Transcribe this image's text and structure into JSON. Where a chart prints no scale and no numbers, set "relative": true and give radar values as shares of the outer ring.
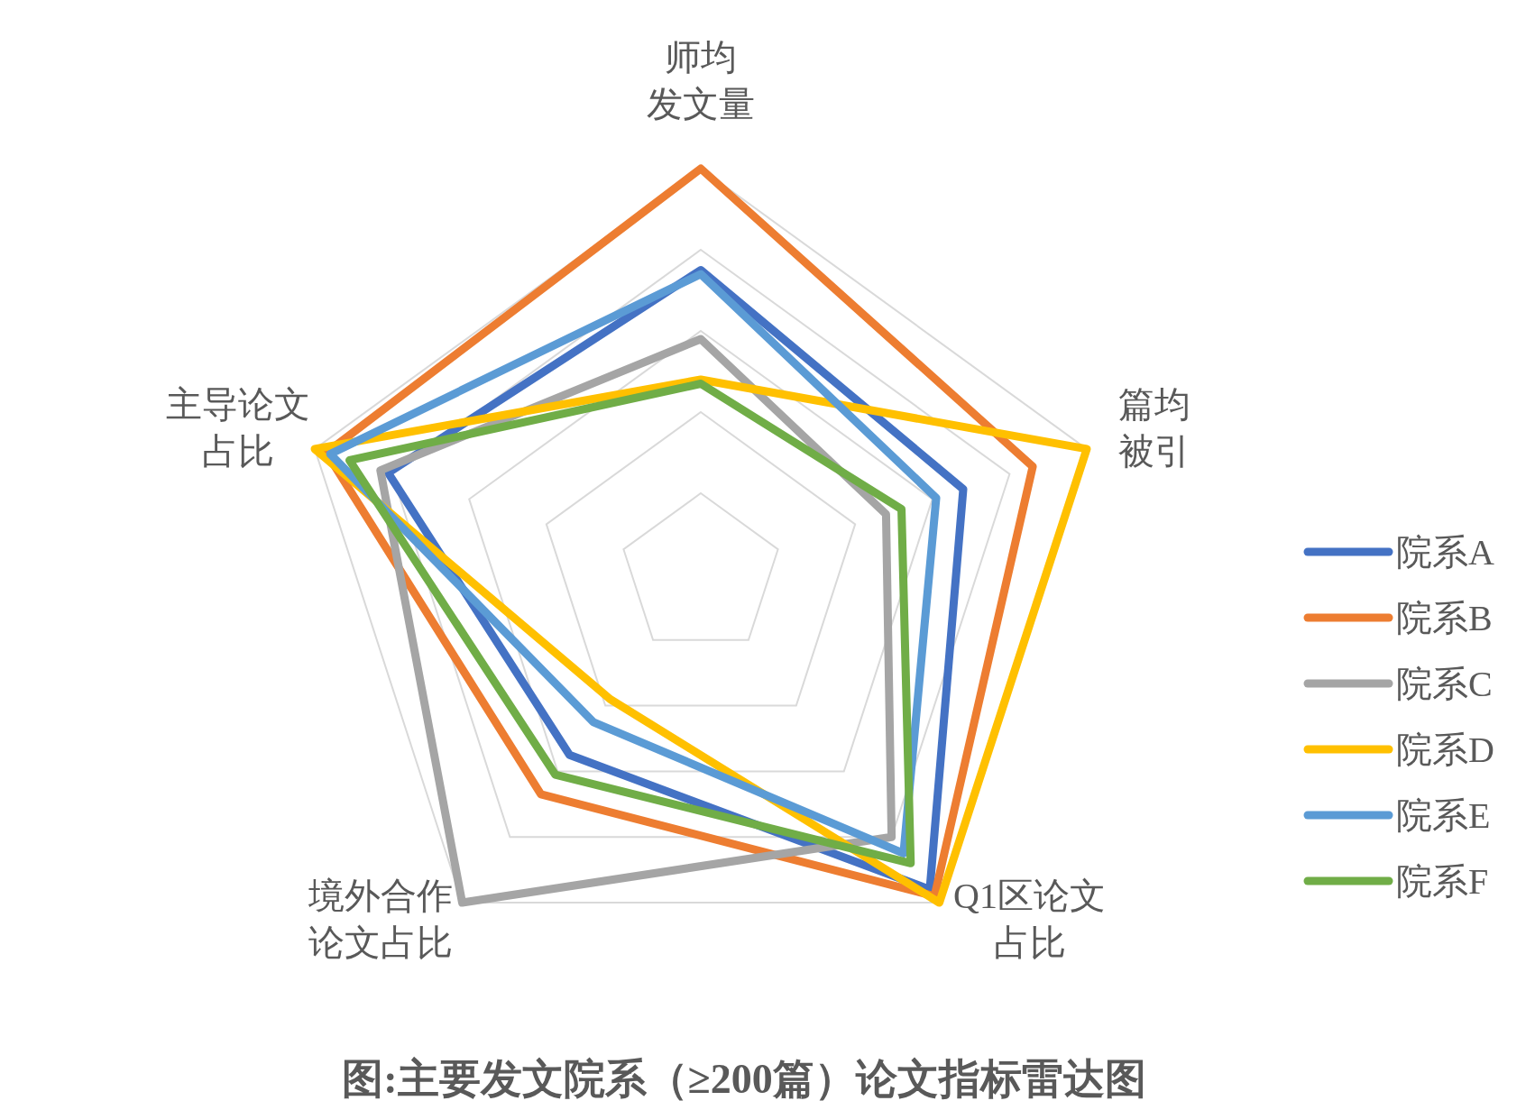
{
  "chart_data": {
    "type": "radar",
    "title": "图:主要发文院系（≥200篇）论文指标雷达图",
    "relative": true,
    "grid": true,
    "legend": "right",
    "line_style": "solid",
    "marker": "none",
    "categories": [
      "师均发文量",
      "篇均被引",
      "Q1区论文占比",
      "境外合作论文占比",
      "主导论文占比"
    ],
    "series": [
      {
        "name": "院系A",
        "color": "#4472c4",
        "values": [
          0.75,
          0.68,
          0.96,
          0.55,
          0.81
        ]
      },
      {
        "name": "院系B",
        "color": "#ed7d31",
        "values": [
          1.0,
          0.86,
          0.98,
          0.67,
          0.97
        ]
      },
      {
        "name": "院系C",
        "color": "#a5a5a5",
        "values": [
          0.58,
          0.48,
          0.8,
          1.0,
          0.83
        ]
      },
      {
        "name": "院系D",
        "color": "#ffc000",
        "values": [
          0.48,
          1.0,
          1.0,
          0.38,
          1.0
        ]
      },
      {
        "name": "院系E",
        "color": "#5b9bd5",
        "values": [
          0.74,
          0.61,
          0.85,
          0.45,
          0.96
        ]
      },
      {
        "name": "院系F",
        "color": "#70ad47",
        "values": [
          0.47,
          0.52,
          0.88,
          0.61,
          0.91
        ]
      }
    ]
  }
}
